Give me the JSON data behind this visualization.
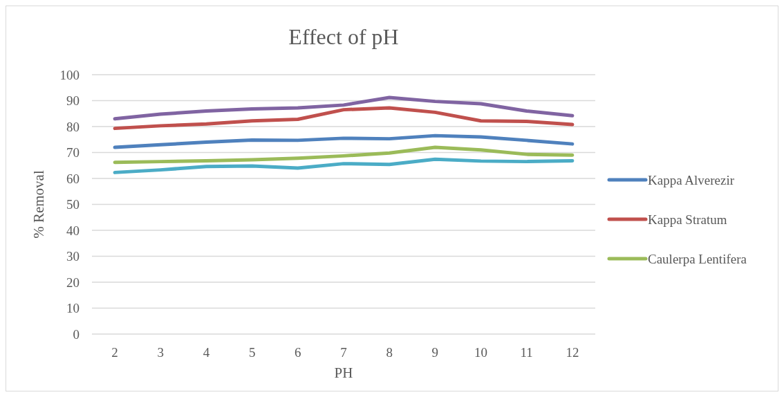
{
  "chart_data": {
    "type": "line",
    "title": "Effect of pH",
    "xlabel": "PH",
    "ylabel": "% Removal",
    "categories": [
      "2",
      "3",
      "4",
      "5",
      "6",
      "7",
      "8",
      "9",
      "10",
      "11",
      "12"
    ],
    "series": [
      {
        "name": "Kappa Alverezir",
        "color": "#4f81bd",
        "values": [
          72,
          73,
          74,
          74.8,
          74.7,
          75.5,
          75.3,
          76.5,
          76,
          74.7,
          73.3
        ]
      },
      {
        "name": "Kappa Stratum",
        "color": "#c0504d",
        "values": [
          79.3,
          80.3,
          81,
          82.2,
          82.8,
          86.5,
          87.2,
          85.5,
          82.2,
          82,
          80.8
        ]
      },
      {
        "name": "Caulerpa Lentifera",
        "color": "#9bbb59",
        "values": [
          66.2,
          66.5,
          66.8,
          67.2,
          67.8,
          68.7,
          69.8,
          72,
          71,
          69.3,
          69
        ]
      },
      {
        "color": "#8064a2",
        "values": [
          83,
          84.8,
          86,
          86.8,
          87.2,
          88.3,
          91.2,
          89.7,
          88.8,
          86,
          84.2
        ]
      },
      {
        "color": "#4bacc6",
        "values": [
          62.3,
          63.3,
          64.6,
          64.8,
          64,
          65.7,
          65.4,
          67.4,
          66.7,
          66.5,
          66.8
        ]
      }
    ],
    "ylim": [
      0,
      100
    ],
    "yticks": [
      0,
      10,
      20,
      30,
      40,
      50,
      60,
      70,
      80,
      90,
      100
    ],
    "grid": "y",
    "legend": "right",
    "marker": "none",
    "line_style": "solid"
  }
}
